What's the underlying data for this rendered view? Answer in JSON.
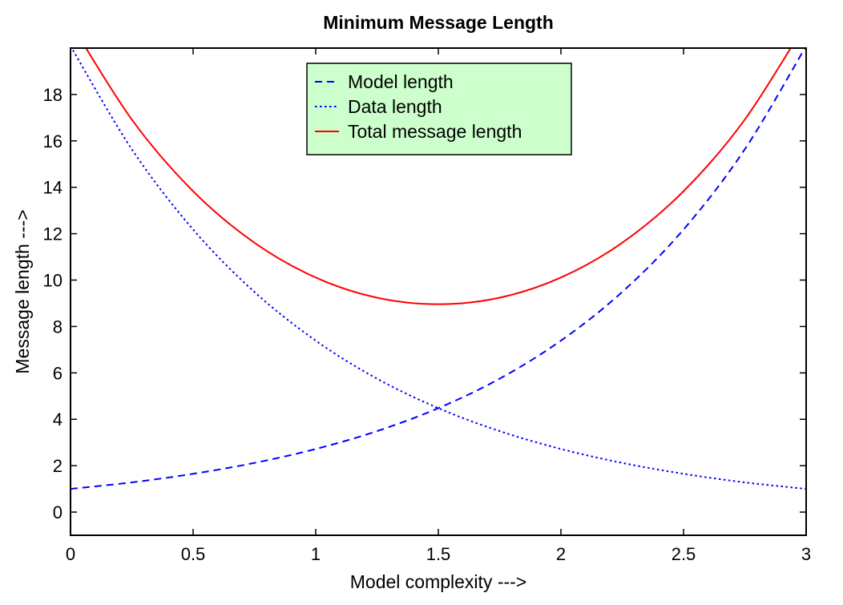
{
  "chart_data": {
    "type": "line",
    "title": "Minimum Message Length",
    "xlabel": "Model complexity --->",
    "ylabel": "Message length --->",
    "xlim": [
      0,
      3
    ],
    "ylim": [
      -1,
      20
    ],
    "x_ticks": [
      0,
      0.5,
      1,
      1.5,
      2,
      2.5,
      3
    ],
    "x_tick_labels": [
      "0",
      "0.5",
      "1",
      "1.5",
      "2",
      "2.5",
      "3"
    ],
    "y_ticks": [
      0,
      2,
      4,
      6,
      8,
      10,
      12,
      14,
      16,
      18
    ],
    "y_tick_labels": [
      "0",
      "2",
      "4",
      "6",
      "8",
      "10",
      "12",
      "14",
      "16",
      "18"
    ],
    "grid": false,
    "legend_position": "top-center",
    "legend_background": "#ccffcc",
    "series": [
      {
        "name": "Model length",
        "style": "dashed",
        "color": "#0000ff",
        "x": [
          0,
          0.25,
          0.5,
          0.75,
          1,
          1.25,
          1.5,
          1.75,
          2,
          2.25,
          2.5,
          2.75,
          3
        ],
        "y": [
          1.0,
          1.28,
          1.65,
          2.12,
          2.72,
          3.49,
          4.48,
          5.75,
          7.39,
          9.49,
          12.18,
          15.64,
          20.09
        ]
      },
      {
        "name": "Data length",
        "style": "dotted",
        "color": "#0000ff",
        "x": [
          0,
          0.25,
          0.5,
          0.75,
          1,
          1.25,
          1.5,
          1.75,
          2,
          2.25,
          2.5,
          2.75,
          3
        ],
        "y": [
          20.09,
          15.64,
          12.18,
          9.49,
          7.39,
          5.75,
          4.48,
          3.49,
          2.72,
          2.12,
          1.65,
          1.28,
          1.0
        ]
      },
      {
        "name": "Total message length",
        "style": "solid",
        "color": "#ff0000",
        "x": [
          0,
          0.25,
          0.5,
          0.75,
          1,
          1.25,
          1.5,
          1.75,
          2,
          2.25,
          2.5,
          2.75,
          3
        ],
        "y": [
          21.09,
          16.92,
          13.83,
          11.61,
          10.11,
          9.24,
          8.96,
          9.24,
          10.11,
          11.61,
          13.83,
          16.92,
          21.09
        ]
      }
    ]
  }
}
